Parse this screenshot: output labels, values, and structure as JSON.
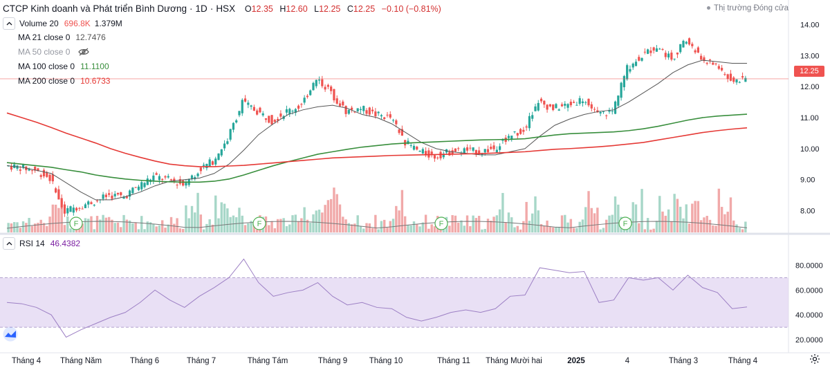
{
  "header": {
    "symbol_name": "CTCP Kinh doanh và Phát triển Bình Dương",
    "interval": "1D",
    "exchange": "HSX",
    "ohlc": {
      "o_label": "O",
      "o": "12.35",
      "h_label": "H",
      "h": "12.60",
      "l_label": "L",
      "l": "12.25",
      "c_label": "C",
      "c": "12.25",
      "change": "−0.10 (−0.81%)"
    },
    "market_status": "Thị trường Đóng cửa"
  },
  "indicators": {
    "volume": {
      "label": "Volume 20",
      "value1": "696.8K",
      "value2": "1.379M"
    },
    "ma21": {
      "label": "MA 21 close 0",
      "value": "12.7476"
    },
    "ma50": {
      "label": "MA 50 close 0",
      "value": ""
    },
    "ma100": {
      "label": "MA 100 close 0",
      "value": "11.1100"
    },
    "ma200": {
      "label": "MA 200 close 0",
      "value": "10.6733"
    },
    "rsi": {
      "label": "RSI 14",
      "value": "46.4382"
    }
  },
  "last_price_tag": "12.25",
  "colors": {
    "up": "#26a69a",
    "down": "#ef5350",
    "ma21": "#555555",
    "ma100": "#388e3c",
    "ma200": "#e53935",
    "rsi": "#9c7fc4",
    "rsi_band": "#e1d6f2",
    "volume_up": "#a7d7c8",
    "volume_down": "#f1a9a9",
    "earnings_marker": "#4caf50"
  },
  "icons": {
    "collapse": "chevron-up-icon",
    "hidden": "eye-off-icon",
    "logo": "tradingview-logo-icon",
    "settings": "gear-icon"
  },
  "chart_data": {
    "type": "line",
    "title": "CTCP Kinh doanh và Phát triển Bình Dương · 1D · HSX",
    "x_tick_labels": [
      "Tháng 4",
      "Tháng Năm",
      "Tháng 6",
      "Tháng 7",
      "Tháng Tám",
      "Tháng 9",
      "Tháng 10",
      "Tháng 11",
      "Tháng Mười hai",
      "2025",
      "4",
      "Tháng 3",
      "Tháng 4"
    ],
    "price_axis_labels": [
      "14.00",
      "13.00",
      "12.00",
      "11.00",
      "10.00",
      "9.00",
      "8.00"
    ],
    "ylim": [
      7.3,
      14.3
    ],
    "rsi_axis_labels": [
      "80.0000",
      "60.0000",
      "40.0000",
      "20.0000"
    ],
    "rsi_ylim": [
      15,
      92
    ],
    "rsi_band": [
      30,
      70
    ],
    "close_series_note": "approximate daily closes read from candles",
    "x": [
      0,
      5,
      10,
      15,
      20,
      25,
      30,
      35,
      40,
      45,
      50,
      55,
      60,
      65,
      70,
      75,
      80,
      85,
      90,
      95,
      100,
      105,
      110,
      115,
      120,
      125,
      130,
      135,
      140,
      145,
      150,
      155,
      160,
      165,
      170,
      175,
      180,
      185,
      190,
      195,
      200,
      205,
      210,
      215,
      220,
      225,
      230,
      235,
      240,
      245,
      250
    ],
    "series": [
      {
        "name": "Close",
        "values": [
          9.45,
          9.4,
          9.3,
          9.05,
          8.0,
          8.15,
          8.3,
          8.5,
          8.45,
          8.8,
          9.1,
          9.0,
          8.85,
          9.3,
          9.6,
          10.3,
          11.5,
          11.2,
          10.9,
          11.2,
          11.4,
          12.3,
          11.8,
          11.2,
          11.3,
          11.1,
          11.0,
          10.2,
          9.9,
          9.75,
          9.9,
          9.95,
          9.9,
          10.0,
          10.4,
          10.6,
          11.5,
          11.3,
          11.4,
          11.6,
          11.1,
          11.2,
          12.6,
          13.0,
          13.3,
          12.9,
          13.5,
          12.9,
          12.7,
          12.2,
          12.25
        ]
      },
      {
        "name": "MA 21 close 0",
        "values": [
          9.45,
          9.4,
          9.3,
          9.2,
          8.9,
          8.6,
          8.35,
          8.35,
          8.45,
          8.6,
          8.8,
          8.95,
          9.0,
          9.05,
          9.2,
          9.5,
          9.95,
          10.45,
          10.8,
          11.1,
          11.25,
          11.35,
          11.4,
          11.3,
          11.1,
          11.0,
          10.8,
          10.5,
          10.2,
          10.0,
          9.9,
          9.85,
          9.8,
          9.8,
          9.9,
          10.0,
          10.4,
          10.75,
          10.95,
          11.1,
          11.2,
          11.25,
          11.5,
          11.8,
          12.1,
          12.45,
          12.7,
          12.85,
          12.8,
          12.75,
          12.75
        ]
      },
      {
        "name": "MA 100 close 0",
        "values": [
          9.55,
          9.5,
          9.45,
          9.4,
          9.32,
          9.25,
          9.15,
          9.08,
          9.02,
          8.98,
          8.95,
          8.93,
          8.92,
          8.92,
          8.95,
          9.02,
          9.15,
          9.3,
          9.45,
          9.58,
          9.7,
          9.82,
          9.9,
          9.98,
          10.05,
          10.1,
          10.15,
          10.18,
          10.2,
          10.22,
          10.24,
          10.26,
          10.28,
          10.29,
          10.3,
          10.32,
          10.38,
          10.44,
          10.48,
          10.5,
          10.52,
          10.54,
          10.58,
          10.64,
          10.72,
          10.82,
          10.92,
          11.0,
          11.05,
          11.08,
          11.11
        ]
      },
      {
        "name": "MA 200 close 0",
        "values": [
          11.15,
          11.0,
          10.85,
          10.68,
          10.5,
          10.34,
          10.18,
          10.0,
          9.85,
          9.72,
          9.6,
          9.5,
          9.45,
          9.42,
          9.42,
          9.44,
          9.46,
          9.5,
          9.54,
          9.58,
          9.62,
          9.66,
          9.7,
          9.72,
          9.74,
          9.76,
          9.78,
          9.79,
          9.8,
          9.81,
          9.82,
          9.83,
          9.84,
          9.86,
          9.88,
          9.9,
          9.94,
          9.98,
          10.0,
          10.03,
          10.06,
          10.1,
          10.15,
          10.2,
          10.28,
          10.36,
          10.44,
          10.52,
          10.58,
          10.63,
          10.67
        ]
      },
      {
        "name": "RSI 14",
        "values": [
          50,
          49,
          46,
          40,
          22,
          28,
          33,
          38,
          42,
          50,
          60,
          52,
          46,
          55,
          62,
          70,
          85,
          66,
          55,
          58,
          60,
          66,
          55,
          48,
          50,
          46,
          45,
          38,
          35,
          38,
          42,
          44,
          42,
          45,
          55,
          56,
          78,
          76,
          74,
          75,
          50,
          52,
          70,
          68,
          70,
          60,
          72,
          62,
          58,
          45,
          46.4
        ]
      }
    ]
  }
}
